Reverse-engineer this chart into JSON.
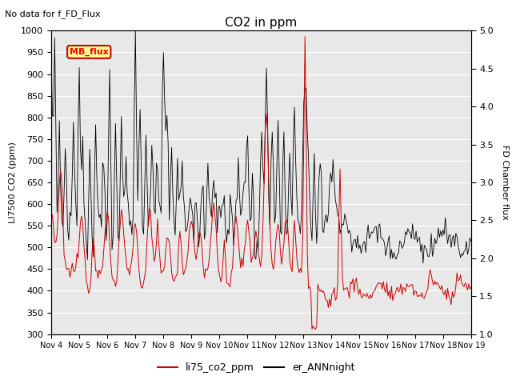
{
  "title": "CO2 in ppm",
  "subtitle": "No data for f_FD_Flux",
  "ylabel_left": "LI7500 CO2 (ppm)",
  "ylabel_right": "FD Chamber flux",
  "ylim_left": [
    300,
    1000
  ],
  "ylim_right": [
    1.0,
    5.0
  ],
  "yticks_left": [
    300,
    350,
    400,
    450,
    500,
    550,
    600,
    650,
    700,
    750,
    800,
    850,
    900,
    950,
    1000
  ],
  "yticks_right": [
    1.0,
    1.5,
    2.0,
    2.5,
    3.0,
    3.5,
    4.0,
    4.5,
    5.0
  ],
  "xtick_labels": [
    "Nov 4",
    "Nov 5",
    "Nov 6",
    "Nov 7",
    "Nov 8",
    "Nov 9",
    "Nov 10",
    "Nov 11",
    "Nov 12",
    "Nov 13",
    "Nov 14",
    "Nov 15",
    "Nov 16",
    "Nov 17",
    "Nov 18",
    "Nov 19"
  ],
  "legend_box_label": "MB_flux",
  "legend_box_color": "#ffff99",
  "legend_box_border": "#cc0000",
  "line1_color": "#cc0000",
  "line1_label": "li75_co2_ppm",
  "line2_color": "#000000",
  "line2_label": "er_ANNnight",
  "bg_color": "#e8e8e8",
  "grid_color": "#ffffff",
  "fig_width": 6.4,
  "fig_height": 4.8,
  "dpi": 100
}
